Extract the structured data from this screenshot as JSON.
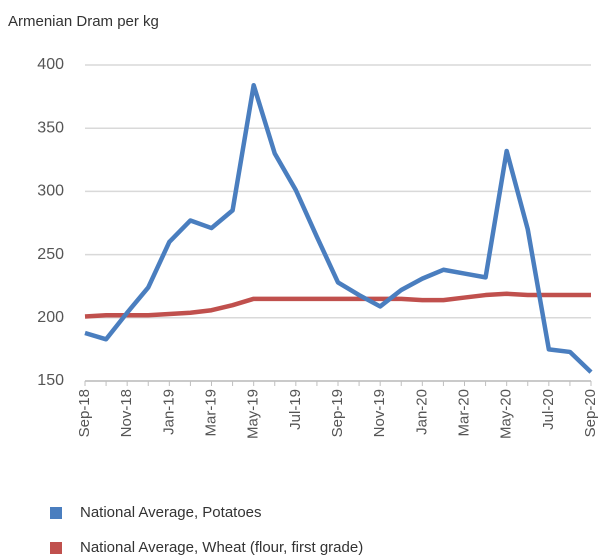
{
  "chart_data": {
    "type": "line",
    "ylabel": "Armenian Dram per kg",
    "categories": [
      "Sep-18",
      null,
      "Nov-18",
      null,
      "Jan-19",
      null,
      "Mar-19",
      null,
      "May-19",
      null,
      "Jul-19",
      null,
      "Sep-19",
      null,
      "Nov-19",
      null,
      "Jan-20",
      null,
      "Mar-20",
      null,
      "May-20",
      null,
      "Jul-20",
      null,
      "Sep-20"
    ],
    "series": [
      {
        "name": "National Average, Potatoes",
        "color": "#4a7ebf",
        "values": [
          188,
          183,
          204,
          224,
          260,
          277,
          271,
          285,
          384,
          330,
          301,
          264,
          228,
          218,
          209,
          222,
          231,
          238,
          235,
          232,
          332,
          270,
          175,
          173,
          157
        ]
      },
      {
        "name": "National Average, Wheat (flour, first grade)",
        "color": "#c0504d",
        "values": [
          201,
          202,
          202,
          202,
          203,
          204,
          206,
          210,
          215,
          215,
          215,
          215,
          215,
          215,
          215,
          215,
          214,
          214,
          216,
          218,
          219,
          218,
          218,
          218,
          218
        ]
      }
    ],
    "ylim": [
      150,
      400
    ],
    "yticks": [
      150,
      200,
      250,
      300,
      350,
      400
    ],
    "grid": true
  }
}
